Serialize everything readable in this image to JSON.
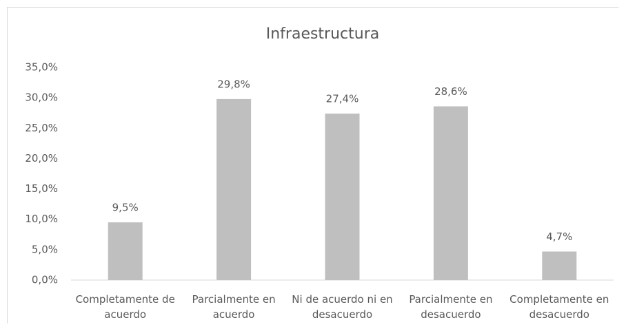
{
  "chart_data": {
    "type": "bar",
    "title": "Infraestructura",
    "categories": [
      "Completamente de acuerdo",
      "Parcialmente en acuerdo",
      "Ni de acuerdo ni en desacuerdo",
      "Parcialmente en desacuerdo",
      "Completamente en desacuerdo"
    ],
    "values": [
      9.5,
      29.8,
      27.4,
      28.6,
      4.7
    ],
    "value_labels": [
      "9,5%",
      "29,8%",
      "27,4%",
      "28,6%",
      "4,7%"
    ],
    "color": "#bfbfbf",
    "ylim": [
      0,
      35
    ],
    "yticks": [
      {
        "value": 0,
        "label": "0,0%"
      },
      {
        "value": 5,
        "label": "5,0%"
      },
      {
        "value": 10,
        "label": "10,0%"
      },
      {
        "value": 15,
        "label": "15,0%"
      },
      {
        "value": 20,
        "label": "20,0%"
      },
      {
        "value": 25,
        "label": "25,0%"
      },
      {
        "value": 30,
        "label": "30,0%"
      },
      {
        "value": 35,
        "label": "35,0%"
      }
    ],
    "grid": false
  }
}
